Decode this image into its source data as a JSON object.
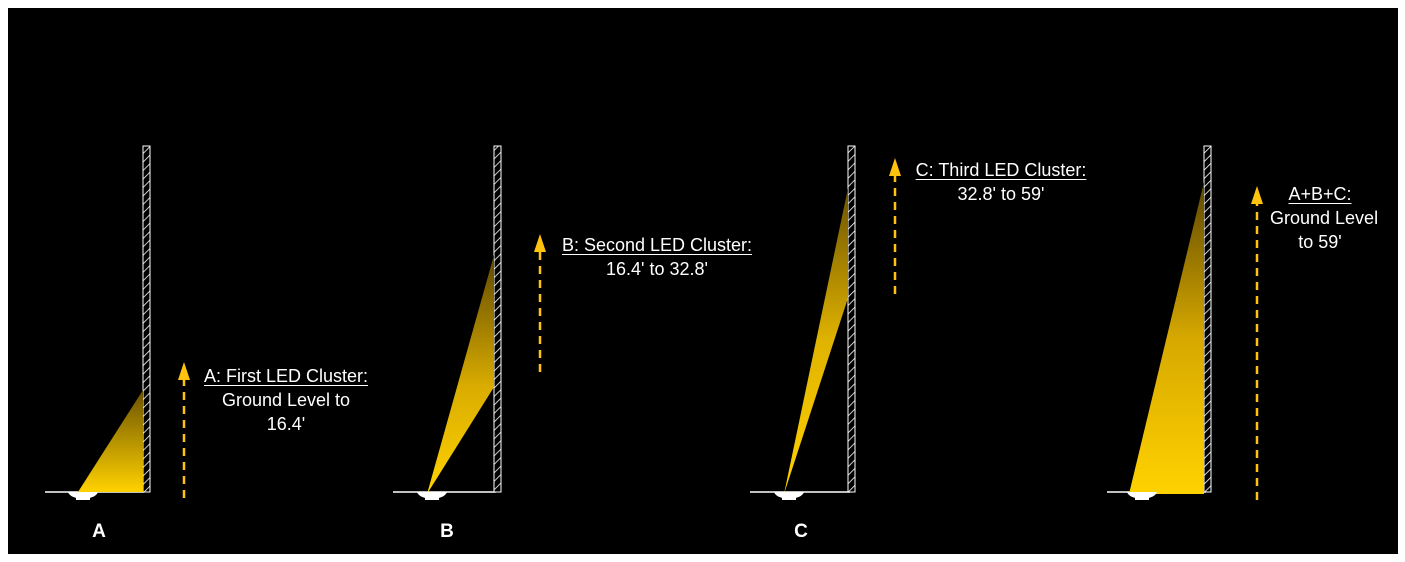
{
  "colors": {
    "background": "#000000",
    "beam": "#FFD200",
    "arrow": "#FFC20E",
    "line": "#FFFFFF"
  },
  "panels": [
    {
      "label": "A",
      "caption_title": "A: First LED Cluster:",
      "caption_line2": "Ground Level to",
      "caption_line3": "16.4'"
    },
    {
      "label": "B",
      "caption_title": "B: Second LED Cluster:",
      "caption_line2": "16.4' to 32.8'",
      "caption_line3": ""
    },
    {
      "label": "C",
      "caption_title": "C: Third LED Cluster:",
      "caption_line2": "32.8' to 59'",
      "caption_line3": ""
    },
    {
      "label": "",
      "caption_title": "A+B+C:",
      "caption_line2": "Ground Level",
      "caption_line3": "to 59'"
    }
  ]
}
